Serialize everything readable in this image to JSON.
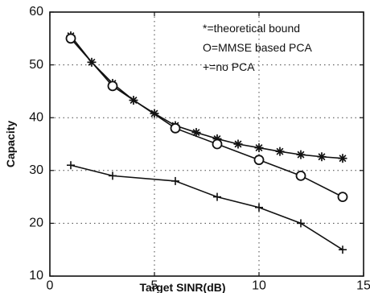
{
  "chart_data": {
    "type": "line",
    "title": "",
    "xlabel": "Target SINR(dB)",
    "ylabel": "Capacity",
    "xlim": [
      0,
      15
    ],
    "ylim": [
      10,
      60
    ],
    "xticks": [
      0,
      5,
      10,
      15
    ],
    "yticks": [
      10,
      20,
      30,
      40,
      50,
      60
    ],
    "grid": true,
    "legend_position": "top-right",
    "series": [
      {
        "name": "*=theoretical bound",
        "marker": "asterisk",
        "x": [
          1,
          2,
          3,
          4,
          5,
          6,
          7,
          8,
          9,
          10,
          11,
          12,
          13,
          14
        ],
        "y": [
          55.5,
          50.5,
          46.5,
          43.3,
          40.8,
          38.5,
          37.2,
          36,
          35,
          34.3,
          33.6,
          33,
          32.6,
          32.3
        ]
      },
      {
        "name": "O=MMSE based PCA",
        "marker": "circle",
        "x": [
          1,
          3,
          6,
          8,
          10,
          12,
          14
        ],
        "y": [
          55,
          46,
          38,
          35,
          32,
          29,
          25
        ]
      },
      {
        "name": "+=no PCA",
        "marker": "plus",
        "x": [
          1,
          3,
          6,
          8,
          10,
          12,
          14
        ],
        "y": [
          31,
          29,
          28,
          25,
          23,
          20,
          15
        ]
      }
    ]
  }
}
